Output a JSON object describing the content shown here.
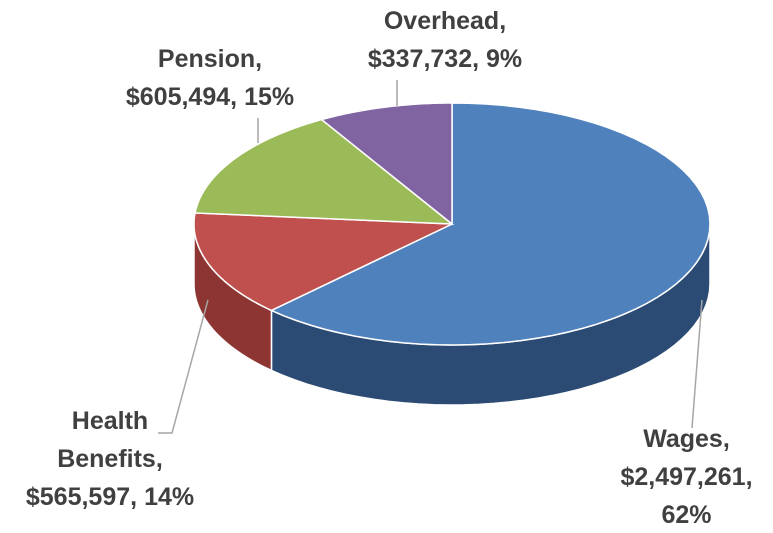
{
  "chart_data": {
    "type": "pie3d",
    "categories": [
      "Wages",
      "Health Benefits",
      "Pension",
      "Overhead"
    ],
    "values": [
      2497261,
      565597,
      605494,
      337732
    ],
    "value_labels": [
      "$2,497,261",
      "$565,597",
      "$605,494",
      "$337,732"
    ],
    "percents": [
      62,
      14,
      15,
      9
    ],
    "percent_labels": [
      "62%",
      "14%",
      "15%",
      "9%"
    ],
    "label_separator": ",",
    "colors": [
      "#4f81bd",
      "#c0504d",
      "#9bbb59",
      "#8064a2"
    ],
    "side_colors": [
      "#2b4a74",
      "#8c3532",
      "#6a8a3a",
      "#5a4577"
    ]
  }
}
